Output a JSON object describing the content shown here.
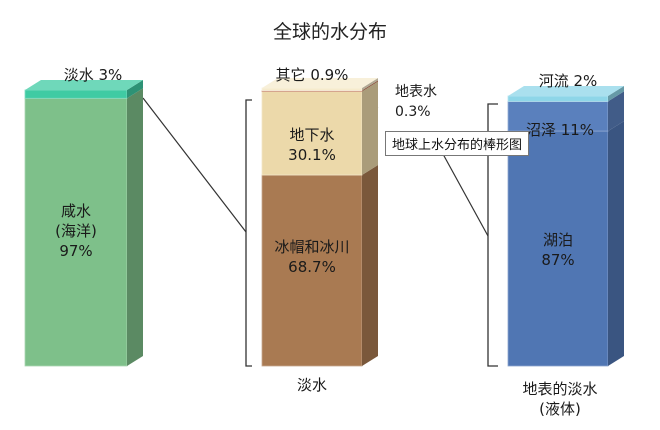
{
  "chart_data": {
    "type": "bar",
    "title": "全球的水分布",
    "tooltip": "地球上水分布的棒形图",
    "bars": [
      {
        "group_label": "",
        "segments": [
          {
            "label": "咸水\n(海洋)\n97%",
            "value": 97,
            "color": "#7ec08a"
          },
          {
            "label": "淡水 3%",
            "value": 3,
            "color": "#3fcba3"
          }
        ]
      },
      {
        "group_label": "淡水",
        "segments": [
          {
            "label": "冰帽和冰川\n68.7%",
            "value": 68.7,
            "color": "#a97a52"
          },
          {
            "label": "地下水\n30.1%",
            "value": 30.1,
            "color": "#ecd9aa"
          },
          {
            "label": "地表水\n0.3%",
            "value": 0.3,
            "color": "#b1543a"
          },
          {
            "label": "其它 0.9%",
            "value": 0.9,
            "color": "#f6ebcd"
          }
        ]
      },
      {
        "group_label": "地表的淡水\n(液体)",
        "segments": [
          {
            "label": "湖泊\n87%",
            "value": 87,
            "color": "#5076b3"
          },
          {
            "label": "沼泽 11%",
            "value": 11,
            "color": "#5a80bd"
          },
          {
            "label": "河流  2%",
            "value": 2,
            "color": "#8ed6e8"
          }
        ]
      }
    ]
  }
}
